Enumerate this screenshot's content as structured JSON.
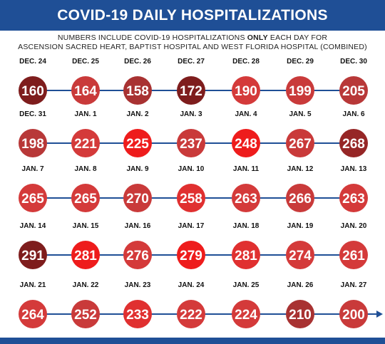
{
  "title": "COVID-19 DAILY HOSPITALIZATIONS",
  "subtitle": {
    "line1_before": "NUMBERS INCLUDE COVID-19 HOSPITALIZATIONS ",
    "line1_bold": "ONLY",
    "line1_after": " EACH DAY FOR",
    "line2": "ASCENSION SACRED HEART, BAPTIST HOSPITAL AND WEST FLORIDA HOSPITAL (COMBINED)"
  },
  "colors": {
    "header": "#1f4f96",
    "connector": "#1f4f96",
    "circle_palette": [
      "#7e1d1d",
      "#962626",
      "#a83232",
      "#b83838",
      "#c93a3a",
      "#d43a3a",
      "#e03030",
      "#ee1c1c"
    ]
  },
  "chart_data": {
    "type": "table",
    "title": "COVID-19 DAILY HOSPITALIZATIONS",
    "rows": [
      {
        "dates": [
          "DEC. 24",
          "DEC. 25",
          "DEC. 26",
          "DEC. 27",
          "DEC. 28",
          "DEC. 29",
          "DEC. 30"
        ],
        "values": [
          160,
          164,
          158,
          172,
          190,
          199,
          205
        ],
        "shade": [
          0,
          4,
          2,
          0,
          5,
          4,
          3
        ]
      },
      {
        "dates": [
          "DEC. 31",
          "JAN. 1",
          "JAN. 2",
          "JAN. 3",
          "JAN. 4",
          "JAN. 5",
          "JAN. 6"
        ],
        "values": [
          198,
          221,
          225,
          237,
          248,
          267,
          268
        ],
        "shade": [
          3,
          5,
          7,
          4,
          7,
          4,
          1
        ]
      },
      {
        "dates": [
          "JAN. 7",
          "JAN. 8",
          "JAN. 9",
          "JAN. 10",
          "JAN. 11",
          "JAN. 12",
          "JAN. 13"
        ],
        "values": [
          265,
          265,
          270,
          258,
          263,
          266,
          263
        ],
        "shade": [
          5,
          5,
          4,
          6,
          5,
          4,
          5
        ]
      },
      {
        "dates": [
          "JAN. 14",
          "JAN. 15",
          "JAN. 16",
          "JAN. 17",
          "JAN. 18",
          "JAN. 19",
          "JAN. 20"
        ],
        "values": [
          291,
          281,
          276,
          279,
          281,
          274,
          261
        ],
        "shade": [
          0,
          7,
          5,
          7,
          6,
          5,
          5
        ]
      },
      {
        "dates": [
          "JAN. 21",
          "JAN. 22",
          "JAN. 23",
          "JAN. 24",
          "JAN. 25",
          "JAN. 26",
          "JAN. 27"
        ],
        "values": [
          264,
          252,
          233,
          222,
          224,
          210,
          200
        ],
        "shade": [
          5,
          4,
          6,
          5,
          5,
          2,
          4
        ]
      }
    ]
  }
}
